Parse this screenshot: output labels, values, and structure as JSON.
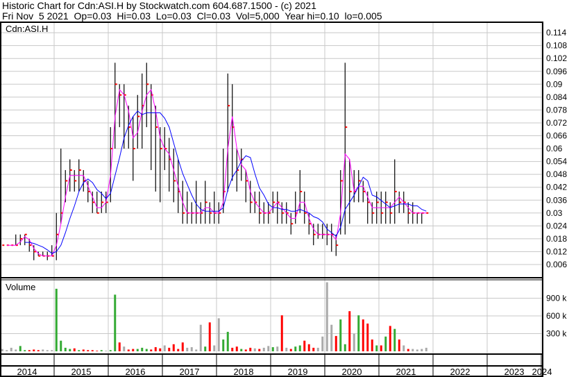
{
  "header": {
    "title": "Historic Chart for Cdn:ASI.H by Stockwatch.com 604.687.1500 - (c) 2021",
    "quote": "Fri Nov  5 2021  Op=0.03  Hi=0.03  Lo=0.03  Cl=0.03  Vol=5,000  Year hi=0.10  lo=0.005"
  },
  "chart_data": {
    "type": "ohlc-with-volume",
    "symbol_label": "Cdn:ASI.H",
    "volume_label": "Volume",
    "price_ticks": [
      "0.006",
      "0.012",
      "0.018",
      "0.024",
      "0.03",
      "0.036",
      "0.042",
      "0.048",
      "0.054",
      "0.06",
      "0.066",
      "0.072",
      "0.078",
      "0.084",
      "0.09",
      "0.096",
      "0.102",
      "0.108",
      "0.114"
    ],
    "price_range": [
      0.0,
      0.12
    ],
    "volume_ticks": [
      "300 k",
      "600 k",
      "900 k"
    ],
    "volume_tick_values": [
      300,
      600,
      900
    ],
    "years": [
      "2014",
      "2015",
      "2016",
      "2017",
      "2018",
      "2019",
      "2020",
      "2021",
      "2022",
      "2023",
      "2024"
    ],
    "start_month": "2014-01",
    "colors": {
      "bar": "#000000",
      "close": "#ff0000",
      "ma_short": "#ff00ff",
      "ma_long": "#0000ff",
      "vol_up": "#33aa33",
      "vol_down": "#ff0000",
      "vol_flat": "#aaaaaa",
      "grid": "#c8c8c8"
    },
    "high": [
      0.015,
      0.015,
      0.015,
      0.02,
      0.02,
      0.02,
      0.018,
      0.015,
      0.012,
      0.012,
      0.012,
      0.015,
      0.03,
      0.06,
      0.05,
      0.055,
      0.05,
      0.055,
      0.05,
      0.045,
      0.04,
      0.04,
      0.04,
      0.04,
      0.07,
      0.1,
      0.09,
      0.09,
      0.08,
      0.075,
      0.085,
      0.095,
      0.1,
      0.09,
      0.08,
      0.07,
      0.07,
      0.065,
      0.06,
      0.055,
      0.045,
      0.04,
      0.035,
      0.045,
      0.035,
      0.045,
      0.035,
      0.04,
      0.035,
      0.06,
      0.095,
      0.09,
      0.06,
      0.06,
      0.05,
      0.045,
      0.04,
      0.04,
      0.035,
      0.035,
      0.04,
      0.04,
      0.035,
      0.035,
      0.03,
      0.04,
      0.05,
      0.04,
      0.03,
      0.025,
      0.025,
      0.025,
      0.025,
      0.025,
      0.02,
      0.05,
      0.1,
      0.055,
      0.05,
      0.05,
      0.045,
      0.04,
      0.035,
      0.04,
      0.04,
      0.04,
      0.035,
      0.055,
      0.04,
      0.04,
      0.035,
      0.035,
      0.03,
      0.03,
      0.03
    ],
    "low": [
      0.015,
      0.015,
      0.015,
      0.015,
      0.015,
      0.015,
      0.012,
      0.008,
      0.01,
      0.01,
      0.008,
      0.01,
      0.008,
      0.025,
      0.035,
      0.04,
      0.04,
      0.04,
      0.04,
      0.035,
      0.03,
      0.03,
      0.03,
      0.03,
      0.035,
      0.06,
      0.07,
      0.06,
      0.06,
      0.045,
      0.06,
      0.06,
      0.07,
      0.05,
      0.04,
      0.035,
      0.05,
      0.04,
      0.035,
      0.03,
      0.025,
      0.025,
      0.025,
      0.025,
      0.025,
      0.025,
      0.025,
      0.025,
      0.025,
      0.03,
      0.04,
      0.045,
      0.04,
      0.045,
      0.035,
      0.03,
      0.03,
      0.025,
      0.025,
      0.025,
      0.03,
      0.025,
      0.025,
      0.025,
      0.02,
      0.025,
      0.03,
      0.025,
      0.02,
      0.015,
      0.018,
      0.018,
      0.015,
      0.012,
      0.01,
      0.02,
      0.02,
      0.025,
      0.035,
      0.035,
      0.035,
      0.025,
      0.025,
      0.025,
      0.025,
      0.025,
      0.025,
      0.025,
      0.03,
      0.03,
      0.025,
      0.025,
      0.025,
      0.025,
      0.03
    ],
    "close": [
      0.015,
      0.015,
      0.015,
      0.015,
      0.018,
      0.02,
      0.015,
      0.012,
      0.01,
      0.01,
      0.01,
      0.01,
      0.02,
      0.03,
      0.045,
      0.05,
      0.045,
      0.05,
      0.045,
      0.04,
      0.035,
      0.03,
      0.035,
      0.035,
      0.06,
      0.09,
      0.085,
      0.085,
      0.07,
      0.06,
      0.075,
      0.08,
      0.09,
      0.085,
      0.07,
      0.06,
      0.06,
      0.055,
      0.045,
      0.04,
      0.03,
      0.03,
      0.03,
      0.03,
      0.03,
      0.035,
      0.03,
      0.03,
      0.03,
      0.04,
      0.08,
      0.07,
      0.05,
      0.055,
      0.045,
      0.035,
      0.035,
      0.03,
      0.03,
      0.03,
      0.035,
      0.035,
      0.03,
      0.03,
      0.025,
      0.03,
      0.04,
      0.03,
      0.025,
      0.02,
      0.02,
      0.02,
      0.02,
      0.02,
      0.015,
      0.045,
      0.07,
      0.04,
      0.04,
      0.045,
      0.04,
      0.035,
      0.03,
      0.035,
      0.03,
      0.035,
      0.03,
      0.04,
      0.035,
      0.035,
      0.03,
      0.03,
      0.03,
      0.03,
      0.03
    ],
    "volume_k": [
      40,
      20,
      60,
      30,
      90,
      20,
      20,
      30,
      20,
      30,
      20,
      20,
      1060,
      180,
      60,
      40,
      50,
      20,
      30,
      20,
      20,
      10,
      20,
      10,
      20,
      960,
      150,
      80,
      30,
      40,
      40,
      60,
      40,
      30,
      70,
      50,
      100,
      60,
      120,
      40,
      150,
      60,
      70,
      30,
      450,
      80,
      490,
      100,
      560,
      200,
      330,
      60,
      80,
      40,
      30,
      60,
      50,
      40,
      60,
      90,
      70,
      80,
      610,
      60,
      40,
      80,
      100,
      180,
      120,
      60,
      60,
      250,
      1170,
      450,
      260,
      540,
      120,
      680,
      300,
      610,
      540,
      470,
      200,
      100,
      100,
      250,
      430,
      380,
      200,
      100,
      40,
      40,
      30,
      40,
      60
    ]
  }
}
